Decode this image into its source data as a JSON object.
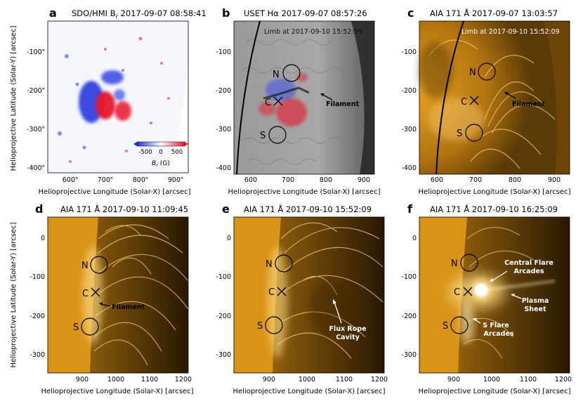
{
  "colors": {
    "aia_gold": "#f2b232",
    "aia_dark": "#2e1c02",
    "hmi_pos": "#e8182b",
    "hmi_neg": "#1c2ee0"
  },
  "y_axis_label": "Helioprojective Latitude (Solar-Y) [arcsec]",
  "x_axis_label": "Helioprojective Longitude (Solar-X) [arcsec]",
  "panels": [
    {
      "letter": "a",
      "title": "SDO/HMI B",
      "title_sub": "r",
      "title_time": " 2017-09-07 08:58:41",
      "x_ticks": [
        "600\"",
        "700\"",
        "800\"",
        "900\""
      ],
      "y_ticks": [
        "-100\"",
        "-200\"",
        "-300\"",
        "-400\""
      ],
      "colorbar": {
        "ticks": [
          "-500",
          "0",
          "500"
        ],
        "label": "B",
        "label_sub": "r",
        "unit": " (G)"
      }
    },
    {
      "letter": "b",
      "title": "USET Hα 2017-09-07 08:57:26",
      "x_ticks": [
        "600",
        "700",
        "800",
        "900"
      ],
      "y_ticks": [
        "-100",
        "-200",
        "-300",
        "-400"
      ],
      "limb_label": "Limb at 2017-09-10 15:52:09",
      "markers": {
        "n": "N",
        "c": "C",
        "s": "S"
      },
      "annotation": "Filament"
    },
    {
      "letter": "c",
      "title": "AIA 171 Å 2017-09-07 13:03:57",
      "x_ticks": [
        "600",
        "700",
        "800",
        "900"
      ],
      "y_ticks": [
        "-100",
        "-200",
        "-300",
        "-400"
      ],
      "limb_label": "Limb at 2017-09-10 15:52:09",
      "markers": {
        "n": "N",
        "c": "C",
        "s": "S"
      },
      "annotation": "Filament"
    },
    {
      "letter": "d",
      "title": "AIA 171 Å 2017-09-10 11:09:45",
      "x_ticks": [
        "900",
        "1000",
        "1100",
        "1200"
      ],
      "y_ticks": [
        "0",
        "-100",
        "-200",
        "-300"
      ],
      "markers": {
        "n": "N",
        "c": "C",
        "s": "S"
      },
      "annotation": "Filament"
    },
    {
      "letter": "e",
      "title": "AIA 171 Å 2017-09-10 15:52:09",
      "x_ticks": [
        "900",
        "1000",
        "1100",
        "1200"
      ],
      "y_ticks": [
        "0",
        "-100",
        "-200",
        "-300"
      ],
      "markers": {
        "n": "N",
        "c": "C",
        "s": "S"
      },
      "annotation_line1": "Flux Rope",
      "annotation_line2": "Cavity"
    },
    {
      "letter": "f",
      "title": "AIA 171 Å 2017-09-10 16:25:09",
      "x_ticks": [
        "900",
        "1000",
        "1100",
        "1200"
      ],
      "y_ticks": [
        "0",
        "-100",
        "-200",
        "-300"
      ],
      "markers": {
        "n": "N",
        "c": "C",
        "s": "S"
      },
      "annotation_central_1": "Central Flare",
      "annotation_central_2": "Arcades",
      "annotation_plasma_1": "Plasma",
      "annotation_plasma_2": "Sheet",
      "annotation_sflare_1": "S Flare",
      "annotation_sflare_2": "Arcades"
    }
  ]
}
